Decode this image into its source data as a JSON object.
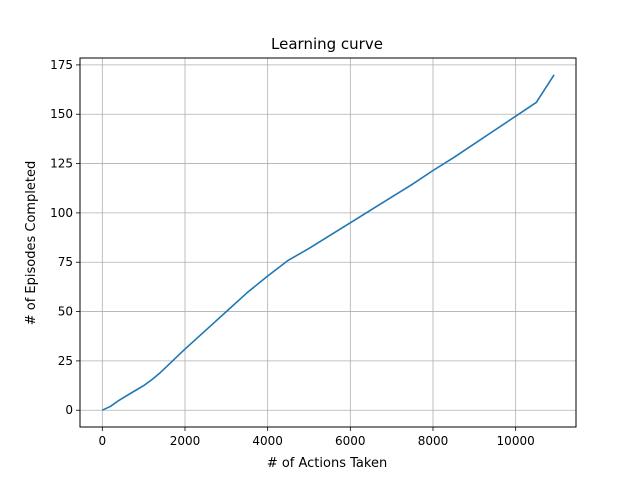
{
  "chart_data": {
    "type": "line",
    "title": "Learning curve",
    "xlabel": "# of Actions Taken",
    "ylabel": "# of Episodes Completed",
    "xlim": [
      -540,
      11460
    ],
    "ylim": [
      -8.5,
      178.5
    ],
    "xticks": [
      0,
      2000,
      4000,
      6000,
      8000,
      10000
    ],
    "yticks": [
      0,
      25,
      50,
      75,
      100,
      125,
      150,
      175
    ],
    "grid": true,
    "series": [
      {
        "color": "#1f77b4",
        "x": [
          0,
          200,
          400,
          600,
          800,
          1000,
          1200,
          1400,
          1600,
          1800,
          2000,
          2500,
          3000,
          3500,
          4000,
          4500,
          5000,
          5500,
          6000,
          6500,
          7000,
          7500,
          8000,
          8500,
          9000,
          9500,
          10000,
          10500,
          10930
        ],
        "y": [
          0,
          2,
          5,
          7.5,
          10,
          12.5,
          15.5,
          19,
          23,
          27,
          31,
          40.5,
          50,
          59.5,
          68,
          76,
          82,
          88.5,
          95,
          101.5,
          108,
          114.5,
          121.5,
          128,
          135,
          142,
          149,
          156,
          170
        ]
      }
    ]
  }
}
